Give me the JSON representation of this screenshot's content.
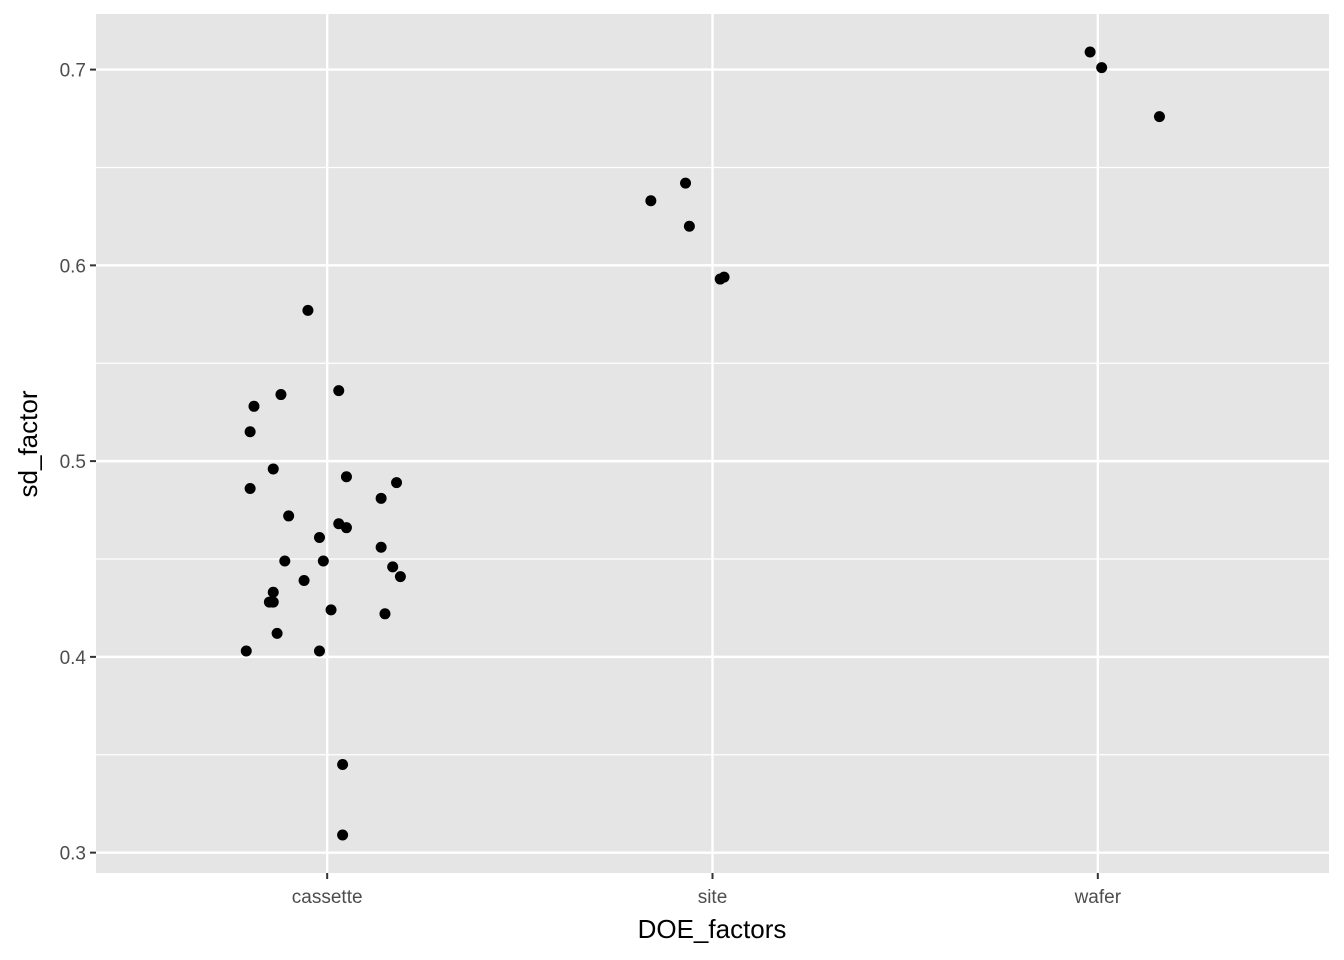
{
  "chart_data": {
    "type": "scatter",
    "title": "",
    "xlabel": "DOE_factors",
    "ylabel": "sd_factor",
    "categories": [
      "cassette",
      "site",
      "wafer"
    ],
    "xlim": [
      0.4,
      3.6
    ],
    "ylim": [
      0.2896,
      0.7284
    ],
    "y_ticks": [
      0.3,
      0.4,
      0.5,
      0.6,
      0.7
    ],
    "y_tick_labels": [
      "0.3",
      "0.4",
      "0.5",
      "0.6",
      "0.7"
    ],
    "grid": true,
    "legend": "none",
    "point_color": "#000000",
    "panel_color": "#e5e5e5",
    "grid_color": "#ffffff",
    "points": [
      {
        "x": 0.95,
        "y": 0.577
      },
      {
        "x": 1.03,
        "y": 0.536
      },
      {
        "x": 0.88,
        "y": 0.534
      },
      {
        "x": 0.81,
        "y": 0.528
      },
      {
        "x": 0.8,
        "y": 0.515
      },
      {
        "x": 0.86,
        "y": 0.496
      },
      {
        "x": 1.05,
        "y": 0.492
      },
      {
        "x": 1.18,
        "y": 0.489
      },
      {
        "x": 0.8,
        "y": 0.486
      },
      {
        "x": 1.14,
        "y": 0.481
      },
      {
        "x": 0.9,
        "y": 0.472
      },
      {
        "x": 1.03,
        "y": 0.468
      },
      {
        "x": 1.05,
        "y": 0.466
      },
      {
        "x": 0.98,
        "y": 0.461
      },
      {
        "x": 1.14,
        "y": 0.456
      },
      {
        "x": 0.89,
        "y": 0.449
      },
      {
        "x": 0.99,
        "y": 0.449
      },
      {
        "x": 1.17,
        "y": 0.446
      },
      {
        "x": 1.19,
        "y": 0.441
      },
      {
        "x": 0.94,
        "y": 0.439
      },
      {
        "x": 0.86,
        "y": 0.433
      },
      {
        "x": 0.85,
        "y": 0.428
      },
      {
        "x": 0.86,
        "y": 0.428
      },
      {
        "x": 1.01,
        "y": 0.424
      },
      {
        "x": 1.15,
        "y": 0.422
      },
      {
        "x": 0.87,
        "y": 0.412
      },
      {
        "x": 0.79,
        "y": 0.403
      },
      {
        "x": 0.98,
        "y": 0.403
      },
      {
        "x": 1.04,
        "y": 0.345
      },
      {
        "x": 1.04,
        "y": 0.309
      },
      {
        "x": 1.93,
        "y": 0.642
      },
      {
        "x": 1.84,
        "y": 0.633
      },
      {
        "x": 1.94,
        "y": 0.62
      },
      {
        "x": 2.02,
        "y": 0.593
      },
      {
        "x": 2.03,
        "y": 0.594
      },
      {
        "x": 2.98,
        "y": 0.709
      },
      {
        "x": 3.01,
        "y": 0.701
      },
      {
        "x": 3.16,
        "y": 0.676
      }
    ]
  }
}
